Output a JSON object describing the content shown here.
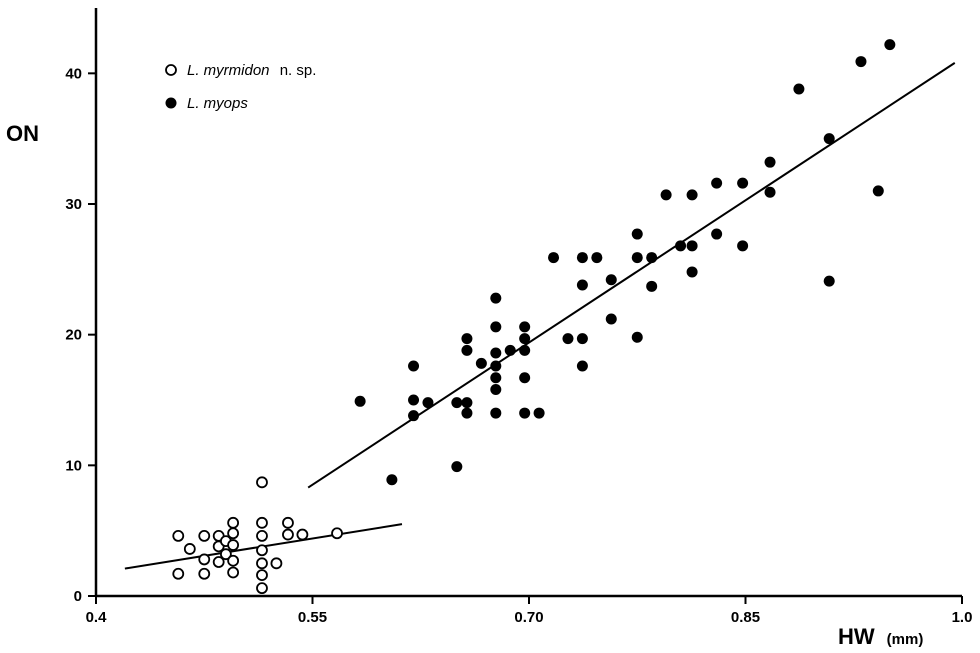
{
  "chart_data": {
    "type": "scatter",
    "xlabel": "HW",
    "xunit": "(mm)",
    "ylabel": "ON",
    "xlim": [
      0.4,
      1.0
    ],
    "ylim": [
      0,
      45
    ],
    "xticks": [
      "0.4",
      "0.55",
      "0.70",
      "0.85",
      "1.0"
    ],
    "yticks": [
      "0",
      "10",
      "20",
      "30",
      "40"
    ],
    "grid": false,
    "legend_position": "top-left",
    "series": [
      {
        "name": "L. myrmidon",
        "name_suffix": "n. sp.",
        "marker": "open-circle",
        "points": [
          [
            0.457,
            1.7
          ],
          [
            0.457,
            4.6
          ],
          [
            0.465,
            3.6
          ],
          [
            0.475,
            1.7
          ],
          [
            0.475,
            2.8
          ],
          [
            0.475,
            4.6
          ],
          [
            0.485,
            2.6
          ],
          [
            0.485,
            3.8
          ],
          [
            0.485,
            4.6
          ],
          [
            0.49,
            3.2
          ],
          [
            0.49,
            4.2
          ],
          [
            0.495,
            1.8
          ],
          [
            0.495,
            2.7
          ],
          [
            0.495,
            3.9
          ],
          [
            0.495,
            4.8
          ],
          [
            0.495,
            5.6
          ],
          [
            0.515,
            0.6
          ],
          [
            0.515,
            1.6
          ],
          [
            0.515,
            2.5
          ],
          [
            0.515,
            3.5
          ],
          [
            0.515,
            4.6
          ],
          [
            0.515,
            5.6
          ],
          [
            0.515,
            8.7
          ],
          [
            0.525,
            2.5
          ],
          [
            0.533,
            4.7
          ],
          [
            0.533,
            5.6
          ],
          [
            0.543,
            4.7
          ],
          [
            0.567,
            4.8
          ]
        ],
        "fit_line": [
          [
            0.42,
            2.1
          ],
          [
            0.612,
            5.5
          ]
        ]
      },
      {
        "name": "L. myops",
        "marker": "filled-circle",
        "points": [
          [
            0.583,
            14.9
          ],
          [
            0.605,
            8.9
          ],
          [
            0.62,
            13.8
          ],
          [
            0.62,
            15.0
          ],
          [
            0.62,
            17.6
          ],
          [
            0.63,
            14.8
          ],
          [
            0.65,
            9.9
          ],
          [
            0.65,
            14.8
          ],
          [
            0.657,
            14.0
          ],
          [
            0.657,
            14.8
          ],
          [
            0.657,
            18.8
          ],
          [
            0.657,
            19.7
          ],
          [
            0.667,
            17.8
          ],
          [
            0.677,
            14.0
          ],
          [
            0.677,
            15.8
          ],
          [
            0.677,
            16.7
          ],
          [
            0.677,
            17.6
          ],
          [
            0.677,
            18.6
          ],
          [
            0.677,
            20.6
          ],
          [
            0.677,
            22.8
          ],
          [
            0.687,
            18.8
          ],
          [
            0.697,
            14.0
          ],
          [
            0.697,
            16.7
          ],
          [
            0.697,
            18.8
          ],
          [
            0.697,
            19.7
          ],
          [
            0.697,
            20.6
          ],
          [
            0.707,
            14.0
          ],
          [
            0.717,
            25.9
          ],
          [
            0.727,
            19.7
          ],
          [
            0.737,
            17.6
          ],
          [
            0.737,
            19.7
          ],
          [
            0.737,
            23.8
          ],
          [
            0.737,
            25.9
          ],
          [
            0.747,
            25.9
          ],
          [
            0.757,
            21.2
          ],
          [
            0.757,
            24.2
          ],
          [
            0.775,
            19.8
          ],
          [
            0.775,
            25.9
          ],
          [
            0.775,
            27.7
          ],
          [
            0.785,
            23.7
          ],
          [
            0.785,
            25.9
          ],
          [
            0.795,
            30.7
          ],
          [
            0.805,
            26.8
          ],
          [
            0.813,
            24.8
          ],
          [
            0.813,
            26.8
          ],
          [
            0.813,
            30.7
          ],
          [
            0.83,
            27.7
          ],
          [
            0.83,
            31.6
          ],
          [
            0.848,
            26.8
          ],
          [
            0.848,
            31.6
          ],
          [
            0.867,
            30.9
          ],
          [
            0.867,
            33.2
          ],
          [
            0.887,
            38.8
          ],
          [
            0.908,
            24.1
          ],
          [
            0.908,
            35.0
          ],
          [
            0.93,
            40.9
          ],
          [
            0.942,
            31.0
          ],
          [
            0.95,
            42.2
          ]
        ],
        "fit_line": [
          [
            0.547,
            8.3
          ],
          [
            0.995,
            40.8
          ]
        ]
      }
    ]
  }
}
